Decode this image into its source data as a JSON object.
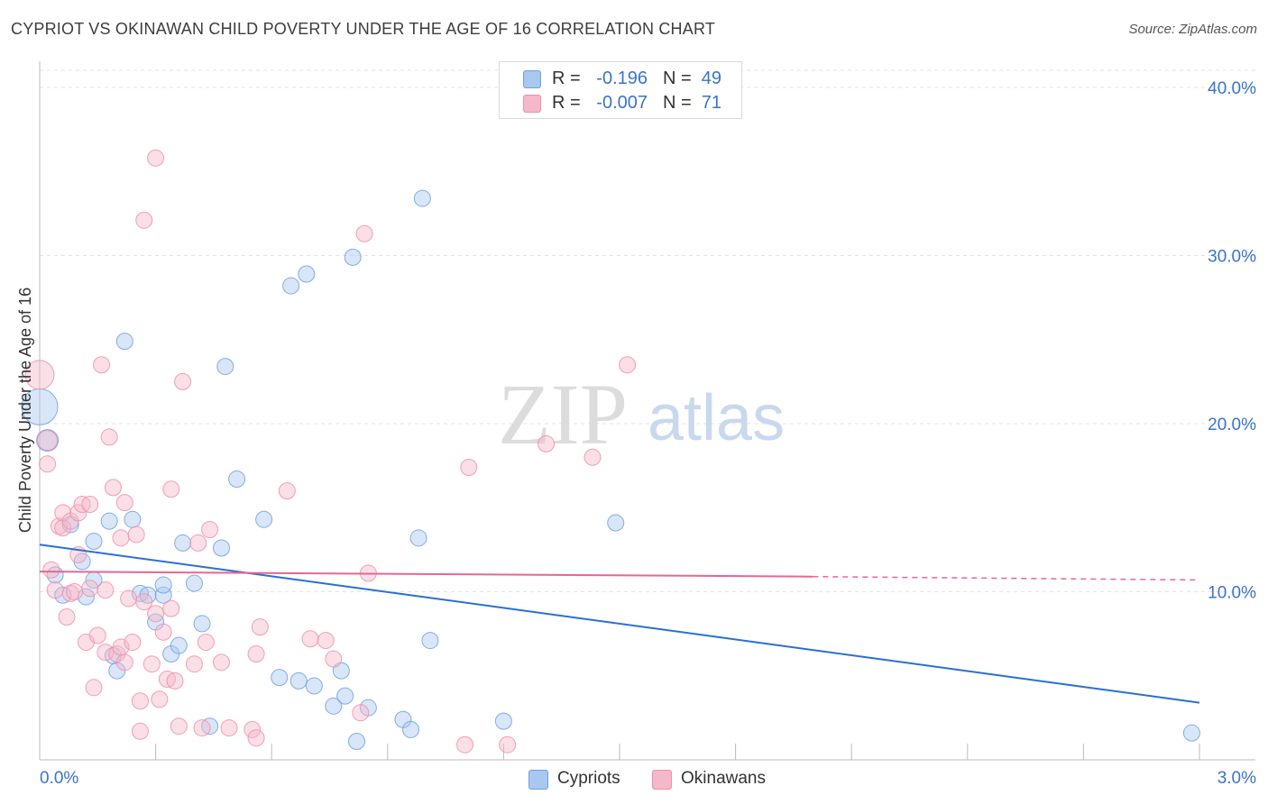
{
  "title": "CYPRIOT VS OKINAWAN CHILD POVERTY UNDER THE AGE OF 16 CORRELATION CHART",
  "source": "Source: ZipAtlas.com",
  "watermark": {
    "zip": "ZIP",
    "atlas": "atlas"
  },
  "legend": {
    "rows": [
      {
        "r_label": "R =",
        "r_value": "-0.196",
        "n_label": "N =",
        "n_value": "49",
        "color": "#a9c8ef"
      },
      {
        "r_label": "R =",
        "r_value": "-0.007",
        "n_label": "N =",
        "n_value": "71",
        "color": "#f5b8ca"
      }
    ]
  },
  "bottom_legend": [
    {
      "label": "Cypriots",
      "color": "#a9c8ef"
    },
    {
      "label": "Okinawans",
      "color": "#f5b8ca"
    }
  ],
  "chart_data": {
    "type": "scatter",
    "title": "CYPRIOT VS OKINAWAN CHILD POVERTY UNDER THE AGE OF 16 CORRELATION CHART",
    "xlabel": "",
    "ylabel": "Child Poverty Under the Age of 16",
    "xlim": [
      0,
      3.0
    ],
    "ylim": [
      0,
      41
    ],
    "x_ticks": [
      {
        "value": 0,
        "label": "0.0%"
      },
      {
        "value": 3.0,
        "label": "3.0%"
      }
    ],
    "y_ticks": [
      {
        "value": 10,
        "label": "10.0%"
      },
      {
        "value": 20,
        "label": "20.0%"
      },
      {
        "value": 30,
        "label": "30.0%"
      },
      {
        "value": 40,
        "label": "40.0%"
      }
    ],
    "grid": "horizontal dashed",
    "legend_position": "top-center",
    "series": [
      {
        "name": "Cypriots",
        "color": "#6fa0e0",
        "fill": "#a9c8ef",
        "r": -0.196,
        "n": 49,
        "trend": {
          "x": [
            0.0,
            3.0
          ],
          "y": [
            12.8,
            3.4
          ]
        },
        "points": [
          [
            0.0,
            21.0,
            20
          ],
          [
            0.02,
            19.0,
            12
          ],
          [
            0.04,
            11.0,
            9
          ],
          [
            0.06,
            9.8,
            9
          ],
          [
            0.08,
            14.0,
            9
          ],
          [
            0.11,
            11.8,
            9
          ],
          [
            0.12,
            9.7,
            9
          ],
          [
            0.14,
            10.7,
            9
          ],
          [
            0.14,
            13.0,
            9
          ],
          [
            0.18,
            14.2,
            9
          ],
          [
            0.19,
            6.2,
            9
          ],
          [
            0.2,
            5.3,
            9
          ],
          [
            0.22,
            24.9,
            9
          ],
          [
            0.24,
            14.3,
            9
          ],
          [
            0.26,
            9.9,
            9
          ],
          [
            0.28,
            9.8,
            9
          ],
          [
            0.3,
            8.2,
            9
          ],
          [
            0.32,
            9.8,
            9
          ],
          [
            0.32,
            10.4,
            9
          ],
          [
            0.34,
            6.3,
            9
          ],
          [
            0.36,
            6.8,
            9
          ],
          [
            0.37,
            12.9,
            9
          ],
          [
            0.4,
            10.5,
            9
          ],
          [
            0.42,
            8.1,
            9
          ],
          [
            0.44,
            2.0,
            9
          ],
          [
            0.47,
            12.6,
            9
          ],
          [
            0.48,
            23.4,
            9
          ],
          [
            0.51,
            16.7,
            9
          ],
          [
            0.58,
            14.3,
            9
          ],
          [
            0.62,
            4.9,
            9
          ],
          [
            0.65,
            28.2,
            9
          ],
          [
            0.67,
            4.7,
            9
          ],
          [
            0.69,
            28.9,
            9
          ],
          [
            0.71,
            4.4,
            9
          ],
          [
            0.76,
            3.2,
            9
          ],
          [
            0.78,
            5.3,
            9
          ],
          [
            0.79,
            3.8,
            9
          ],
          [
            0.81,
            29.9,
            9
          ],
          [
            0.82,
            1.1,
            9
          ],
          [
            0.85,
            3.1,
            9
          ],
          [
            0.94,
            2.4,
            9
          ],
          [
            0.96,
            1.8,
            9
          ],
          [
            0.98,
            13.2,
            9
          ],
          [
            0.99,
            33.4,
            9
          ],
          [
            1.01,
            7.1,
            9
          ],
          [
            1.2,
            2.3,
            9
          ],
          [
            1.49,
            14.1,
            9
          ],
          [
            2.98,
            1.6,
            9
          ]
        ]
      },
      {
        "name": "Okinawans",
        "color": "#ee8fab",
        "fill": "#f5b8ca",
        "r": -0.007,
        "n": 71,
        "trend": {
          "x": [
            0.0,
            2.0
          ],
          "y": [
            11.2,
            10.9
          ]
        },
        "trend_dashed": {
          "x": [
            2.0,
            3.0
          ],
          "y": [
            10.9,
            10.7
          ]
        },
        "points": [
          [
            0.0,
            22.9,
            16
          ],
          [
            0.02,
            19.0,
            11
          ],
          [
            0.02,
            17.6,
            9
          ],
          [
            0.03,
            11.3,
            9
          ],
          [
            0.04,
            10.1,
            9
          ],
          [
            0.05,
            13.9,
            9
          ],
          [
            0.06,
            13.8,
            9
          ],
          [
            0.06,
            14.7,
            9
          ],
          [
            0.07,
            8.5,
            9
          ],
          [
            0.08,
            14.2,
            9
          ],
          [
            0.08,
            9.9,
            9
          ],
          [
            0.09,
            10.0,
            9
          ],
          [
            0.1,
            12.2,
            9
          ],
          [
            0.1,
            14.7,
            9
          ],
          [
            0.11,
            15.2,
            9
          ],
          [
            0.12,
            7.0,
            9
          ],
          [
            0.13,
            10.2,
            9
          ],
          [
            0.13,
            15.2,
            9
          ],
          [
            0.14,
            4.3,
            9
          ],
          [
            0.15,
            7.4,
            9
          ],
          [
            0.16,
            23.5,
            9
          ],
          [
            0.17,
            10.1,
            9
          ],
          [
            0.17,
            6.4,
            9
          ],
          [
            0.18,
            19.2,
            9
          ],
          [
            0.19,
            16.2,
            9
          ],
          [
            0.2,
            6.3,
            9
          ],
          [
            0.21,
            6.7,
            9
          ],
          [
            0.21,
            13.2,
            9
          ],
          [
            0.22,
            15.3,
            9
          ],
          [
            0.22,
            5.8,
            9
          ],
          [
            0.23,
            9.6,
            9
          ],
          [
            0.24,
            7.0,
            9
          ],
          [
            0.25,
            13.4,
            9
          ],
          [
            0.26,
            1.7,
            9
          ],
          [
            0.26,
            3.5,
            9
          ],
          [
            0.27,
            32.1,
            9
          ],
          [
            0.27,
            9.4,
            9
          ],
          [
            0.29,
            5.7,
            9
          ],
          [
            0.3,
            8.7,
            9
          ],
          [
            0.3,
            35.8,
            9
          ],
          [
            0.31,
            3.6,
            9
          ],
          [
            0.32,
            7.6,
            9
          ],
          [
            0.33,
            4.8,
            9
          ],
          [
            0.34,
            16.1,
            9
          ],
          [
            0.34,
            9.0,
            9
          ],
          [
            0.35,
            4.7,
            9
          ],
          [
            0.36,
            2.0,
            9
          ],
          [
            0.37,
            22.5,
            9
          ],
          [
            0.4,
            5.7,
            9
          ],
          [
            0.41,
            12.9,
            9
          ],
          [
            0.42,
            1.9,
            9
          ],
          [
            0.43,
            7.0,
            9
          ],
          [
            0.44,
            13.7,
            9
          ],
          [
            0.47,
            5.8,
            9
          ],
          [
            0.49,
            1.9,
            9
          ],
          [
            0.55,
            1.8,
            9
          ],
          [
            0.56,
            1.3,
            9
          ],
          [
            0.56,
            6.3,
            9
          ],
          [
            0.57,
            7.9,
            9
          ],
          [
            0.64,
            16.0,
            9
          ],
          [
            0.7,
            7.2,
            9
          ],
          [
            0.74,
            7.1,
            9
          ],
          [
            0.76,
            6.0,
            9
          ],
          [
            0.83,
            2.8,
            9
          ],
          [
            0.84,
            31.3,
            9
          ],
          [
            0.85,
            11.1,
            9
          ],
          [
            1.1,
            0.9,
            9
          ],
          [
            1.11,
            17.4,
            9
          ],
          [
            1.21,
            0.9,
            9
          ],
          [
            1.31,
            18.8,
            9
          ],
          [
            1.43,
            18.0,
            9
          ],
          [
            1.52,
            23.5,
            9
          ]
        ]
      }
    ]
  }
}
